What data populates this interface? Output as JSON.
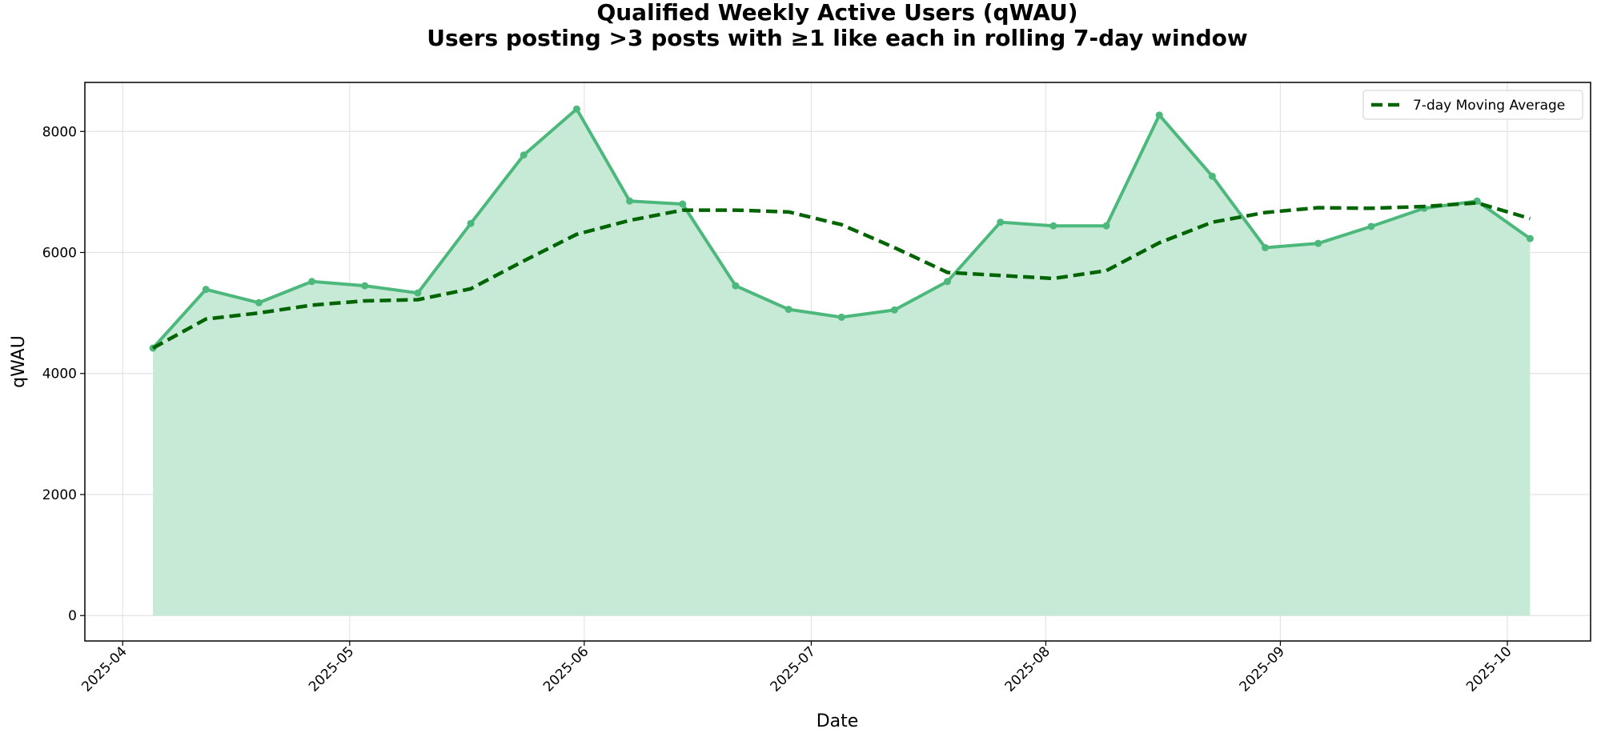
{
  "chart_data": {
    "type": "line",
    "title": "Qualified Weekly Active Users (qWAU)",
    "subtitle": "Users posting >3 posts with ≥1 like each in rolling 7-day window",
    "x_label": "Date",
    "y_label": "qWAU",
    "x": [
      "2025-04-05",
      "2025-04-12",
      "2025-04-19",
      "2025-04-26",
      "2025-05-03",
      "2025-05-10",
      "2025-05-17",
      "2025-05-24",
      "2025-05-31",
      "2025-06-07",
      "2025-06-14",
      "2025-06-21",
      "2025-06-28",
      "2025-07-05",
      "2025-07-12",
      "2025-07-19",
      "2025-07-26",
      "2025-08-02",
      "2025-08-09",
      "2025-08-16",
      "2025-08-23",
      "2025-08-30",
      "2025-09-06",
      "2025-09-13",
      "2025-09-20",
      "2025-09-27",
      "2025-10-04"
    ],
    "series": [
      {
        "color": "#4cb87c",
        "fill": "#c6ead6",
        "values": [
          4420,
          5390,
          5170,
          5520,
          5450,
          5330,
          6480,
          7610,
          8370,
          6850,
          6800,
          5450,
          5060,
          4930,
          5050,
          5520,
          6500,
          6440,
          6440,
          8270,
          7260,
          6080,
          6150,
          6430,
          6730,
          6850,
          6230
        ]
      },
      {
        "name": "7-day Moving Average",
        "color": "#006400",
        "dashed": true,
        "values": [
          4420,
          4900,
          5000,
          5130,
          5200,
          5220,
          5400,
          5860,
          6300,
          6530,
          6700,
          6700,
          6670,
          6460,
          6080,
          5670,
          5620,
          5570,
          5700,
          6160,
          6500,
          6660,
          6740,
          6730,
          6760,
          6820,
          6560
        ]
      }
    ],
    "xlim": [
      "2025-03-27",
      "2025-10-12"
    ],
    "xticks": [
      {
        "value": "2025-04-01",
        "label": "2025-04"
      },
      {
        "value": "2025-05-01",
        "label": "2025-05"
      },
      {
        "value": "2025-06-01",
        "label": "2025-06"
      },
      {
        "value": "2025-07-01",
        "label": "2025-07"
      },
      {
        "value": "2025-08-01",
        "label": "2025-08"
      },
      {
        "value": "2025-09-01",
        "label": "2025-09"
      },
      {
        "value": "2025-10-01",
        "label": "2025-10"
      }
    ],
    "ylim": [
      -420,
      8810
    ],
    "yticks": [
      0,
      2000,
      4000,
      6000,
      8000
    ],
    "grid": true,
    "legend": "upper right"
  }
}
